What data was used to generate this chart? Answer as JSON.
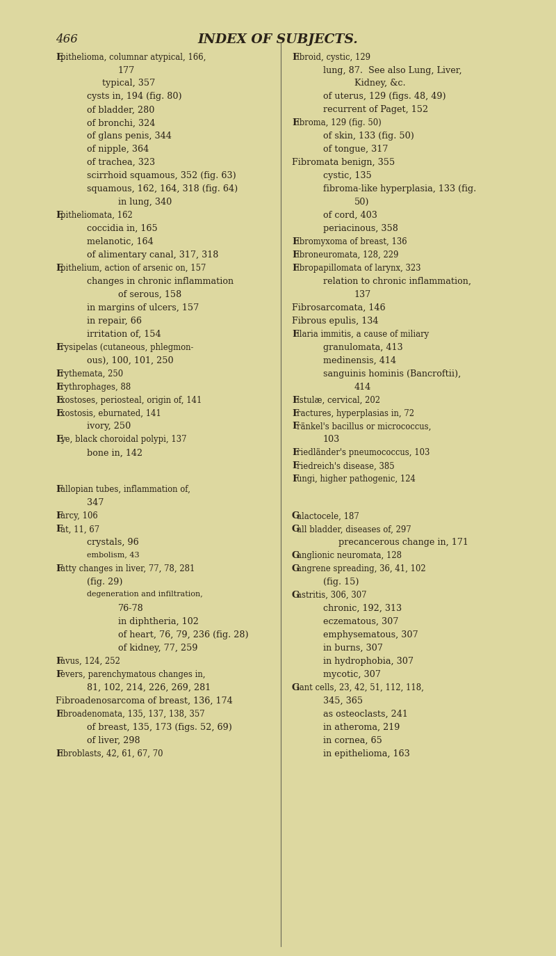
{
  "background_color": "#ddd8a0",
  "page_number": "466",
  "title": "INDEX OF SUBJECTS.",
  "left_entries": [
    {
      "text": "Epithelioma, columnar atypical, 166,",
      "indent": 0,
      "style": "smallcaps"
    },
    {
      "text": "177",
      "indent": 4,
      "style": "normal"
    },
    {
      "text": "typical, 357",
      "indent": 3,
      "style": "normal"
    },
    {
      "text": "cysts in, 194 (fig. 80)",
      "indent": 2,
      "style": "normal"
    },
    {
      "text": "of bladder, 280",
      "indent": 2,
      "style": "normal"
    },
    {
      "text": "of bronchi, 324",
      "indent": 2,
      "style": "normal"
    },
    {
      "text": "of glans penis, 344",
      "indent": 2,
      "style": "normal"
    },
    {
      "text": "of nipple, 364",
      "indent": 2,
      "style": "normal"
    },
    {
      "text": "of trachea, 323",
      "indent": 2,
      "style": "normal"
    },
    {
      "text": "scirrhoid squamous, 352 (fig. 63)",
      "indent": 2,
      "style": "normal"
    },
    {
      "text": "squamous, 162, 164, 318 (fig. 64)",
      "indent": 2,
      "style": "normal"
    },
    {
      "text": "in lung, 340",
      "indent": 4,
      "style": "normal"
    },
    {
      "text": "Epitheliomata, 162",
      "indent": 0,
      "style": "smallcaps"
    },
    {
      "text": "coccidia in, 165",
      "indent": 2,
      "style": "normal"
    },
    {
      "text": "melanotic, 164",
      "indent": 2,
      "style": "normal"
    },
    {
      "text": "of alimentary canal, 317, 318",
      "indent": 2,
      "style": "normal"
    },
    {
      "text": "Epithelium, action of arsenic on, 157",
      "indent": 0,
      "style": "smallcaps"
    },
    {
      "text": "changes in chronic inflammation",
      "indent": 2,
      "style": "normal"
    },
    {
      "text": "of serous, 158",
      "indent": 4,
      "style": "normal"
    },
    {
      "text": "in margins of ulcers, 157",
      "indent": 2,
      "style": "normal"
    },
    {
      "text": "in repair, 66",
      "indent": 2,
      "style": "normal"
    },
    {
      "text": "irritation of, 154",
      "indent": 2,
      "style": "normal"
    },
    {
      "text": "Erysipelas (cutaneous, phlegmon-",
      "indent": 0,
      "style": "smallcaps"
    },
    {
      "text": "ous), 100, 101, 250",
      "indent": 2,
      "style": "normal"
    },
    {
      "text": "Erythemata, 250",
      "indent": 0,
      "style": "smallcaps"
    },
    {
      "text": "Erythrophages, 88",
      "indent": 0,
      "style": "smallcaps"
    },
    {
      "text": "Exostoses, periosteal, origin of, 141",
      "indent": 0,
      "style": "smallcaps"
    },
    {
      "text": "Exostosis, eburnated, 141",
      "indent": 0,
      "style": "smallcaps"
    },
    {
      "text": "ivory, 250",
      "indent": 2,
      "style": "normal"
    },
    {
      "text": "Eye, black choroidal polypi, 137",
      "indent": 0,
      "style": "smallcaps"
    },
    {
      "text": "bone in, 142",
      "indent": 2,
      "style": "normal"
    },
    {
      "text": "",
      "indent": 0,
      "style": "blank"
    },
    {
      "text": "",
      "indent": 0,
      "style": "blank"
    },
    {
      "text": "Fallopian tubes, inflammation of,",
      "indent": 0,
      "style": "smallcaps"
    },
    {
      "text": "347",
      "indent": 2,
      "style": "normal"
    },
    {
      "text": "Farcy, 106",
      "indent": 0,
      "style": "smallcaps"
    },
    {
      "text": "Fat, 11, 67",
      "indent": 0,
      "style": "smallcaps"
    },
    {
      "text": "crystals, 96",
      "indent": 2,
      "style": "normal"
    },
    {
      "text": "embolism, 43",
      "indent": 2,
      "style": "smallcaps_sub"
    },
    {
      "text": "Fatty changes in liver, 77, 78, 281",
      "indent": 0,
      "style": "smallcaps"
    },
    {
      "text": "(fig. 29)",
      "indent": 2,
      "style": "normal"
    },
    {
      "text": "degeneration and infiltration,",
      "indent": 2,
      "style": "smallcaps_sub"
    },
    {
      "text": "76-78",
      "indent": 4,
      "style": "normal"
    },
    {
      "text": "in diphtheria, 102",
      "indent": 4,
      "style": "normal"
    },
    {
      "text": "of heart, 76, 79, 236 (fig. 28)",
      "indent": 4,
      "style": "normal"
    },
    {
      "text": "of kidney, 77, 259",
      "indent": 4,
      "style": "normal"
    },
    {
      "text": "Favus, 124, 252",
      "indent": 0,
      "style": "smallcaps"
    },
    {
      "text": "Fevers, parenchymatous changes in,",
      "indent": 0,
      "style": "smallcaps"
    },
    {
      "text": "81, 102, 214, 226, 269, 281",
      "indent": 2,
      "style": "normal"
    },
    {
      "text": "Fibroadenosarcoma of breast, 136, 174",
      "indent": 0,
      "style": "normal"
    },
    {
      "text": "Fibroadenomata, 135, 137, 138, 357",
      "indent": 0,
      "style": "smallcaps"
    },
    {
      "text": "of breast, 135, 173 (figs. 52, 69)",
      "indent": 2,
      "style": "normal"
    },
    {
      "text": "of liver, 298",
      "indent": 2,
      "style": "normal"
    },
    {
      "text": "Fibroblasts, 42, 61, 67, 70",
      "indent": 0,
      "style": "smallcaps"
    }
  ],
  "right_entries": [
    {
      "text": "Fibroid, cystic, 129",
      "indent": 0,
      "style": "smallcaps"
    },
    {
      "text": "lung, 87.  See also Lung, Liver,",
      "indent": 2,
      "style": "normal"
    },
    {
      "text": "Kidney, &c.",
      "indent": 4,
      "style": "normal"
    },
    {
      "text": "of uterus, 129 (figs. 48, 49)",
      "indent": 2,
      "style": "normal"
    },
    {
      "text": "recurrent of Paget, 152",
      "indent": 2,
      "style": "normal"
    },
    {
      "text": "Fibroma, 129 (fig. 50)",
      "indent": 0,
      "style": "smallcaps"
    },
    {
      "text": "of skin, 133 (fig. 50)",
      "indent": 2,
      "style": "normal"
    },
    {
      "text": "of tongue, 317",
      "indent": 2,
      "style": "normal"
    },
    {
      "text": "Fibromata benign, 355",
      "indent": 0,
      "style": "normal"
    },
    {
      "text": "cystic, 135",
      "indent": 2,
      "style": "normal"
    },
    {
      "text": "fibroma-like hyperplasia, 133 (fig.",
      "indent": 2,
      "style": "normal"
    },
    {
      "text": "50)",
      "indent": 4,
      "style": "normal"
    },
    {
      "text": "of cord, 403",
      "indent": 2,
      "style": "normal"
    },
    {
      "text": "periacinous, 358",
      "indent": 2,
      "style": "normal"
    },
    {
      "text": "Fibromyxoma of breast, 136",
      "indent": 0,
      "style": "smallcaps"
    },
    {
      "text": "Fibroneuromata, 128, 229",
      "indent": 0,
      "style": "smallcaps"
    },
    {
      "text": "Fibropapillomata of larynx, 323",
      "indent": 0,
      "style": "smallcaps"
    },
    {
      "text": "relation to chronic inflammation,",
      "indent": 2,
      "style": "normal"
    },
    {
      "text": "137",
      "indent": 4,
      "style": "normal"
    },
    {
      "text": "Fibrosarcomata, 146",
      "indent": 0,
      "style": "normal"
    },
    {
      "text": "Fibrous epulis, 134",
      "indent": 0,
      "style": "normal"
    },
    {
      "text": "Filaria immitis, a cause of miliary",
      "indent": 0,
      "style": "smallcaps"
    },
    {
      "text": "granulomata, 413",
      "indent": 2,
      "style": "normal"
    },
    {
      "text": "medinensis, 414",
      "indent": 2,
      "style": "normal"
    },
    {
      "text": "sanguinis hominis (Bancroftii),",
      "indent": 2,
      "style": "normal"
    },
    {
      "text": "414",
      "indent": 4,
      "style": "normal"
    },
    {
      "text": "Fistulæ, cervical, 202",
      "indent": 0,
      "style": "smallcaps"
    },
    {
      "text": "Fractures, hyperplasias in, 72",
      "indent": 0,
      "style": "smallcaps"
    },
    {
      "text": "Fränkel's bacillus or micrococcus,",
      "indent": 0,
      "style": "smallcaps"
    },
    {
      "text": "103",
      "indent": 2,
      "style": "normal"
    },
    {
      "text": "Friedländer's pneumococcus, 103",
      "indent": 0,
      "style": "smallcaps"
    },
    {
      "text": "Friedreich's disease, 385",
      "indent": 0,
      "style": "smallcaps"
    },
    {
      "text": "Fungi, higher pathogenic, 124",
      "indent": 0,
      "style": "smallcaps"
    },
    {
      "text": "",
      "indent": 0,
      "style": "blank"
    },
    {
      "text": "",
      "indent": 0,
      "style": "blank"
    },
    {
      "text": "Galactocele, 187",
      "indent": 0,
      "style": "smallcaps"
    },
    {
      "text": "Gall bladder, diseases of, 297",
      "indent": 0,
      "style": "smallcaps"
    },
    {
      "text": "precancerous change in, 171",
      "indent": 3,
      "style": "normal"
    },
    {
      "text": "Ganglionic neuromata, 128",
      "indent": 0,
      "style": "smallcaps"
    },
    {
      "text": "Gangrene spreading, 36, 41, 102",
      "indent": 0,
      "style": "smallcaps"
    },
    {
      "text": "(fig. 15)",
      "indent": 2,
      "style": "normal"
    },
    {
      "text": "Gastritis, 306, 307",
      "indent": 0,
      "style": "smallcaps"
    },
    {
      "text": "chronic, 192, 313",
      "indent": 2,
      "style": "normal"
    },
    {
      "text": "eczematous, 307",
      "indent": 2,
      "style": "normal"
    },
    {
      "text": "emphysematous, 307",
      "indent": 2,
      "style": "normal"
    },
    {
      "text": "in burns, 307",
      "indent": 2,
      "style": "normal"
    },
    {
      "text": "in hydrophobia, 307",
      "indent": 2,
      "style": "normal"
    },
    {
      "text": "mycotic, 307",
      "indent": 2,
      "style": "normal"
    },
    {
      "text": "Giant cells, 23, 42, 51, 112, 118,",
      "indent": 0,
      "style": "smallcaps"
    },
    {
      "text": "345, 365",
      "indent": 2,
      "style": "normal"
    },
    {
      "text": "as osteoclasts, 241",
      "indent": 2,
      "style": "normal"
    },
    {
      "text": "in atheroma, 219",
      "indent": 2,
      "style": "normal"
    },
    {
      "text": "in cornea, 65",
      "indent": 2,
      "style": "normal"
    },
    {
      "text": "in epithelioma, 163",
      "indent": 2,
      "style": "normal"
    }
  ]
}
